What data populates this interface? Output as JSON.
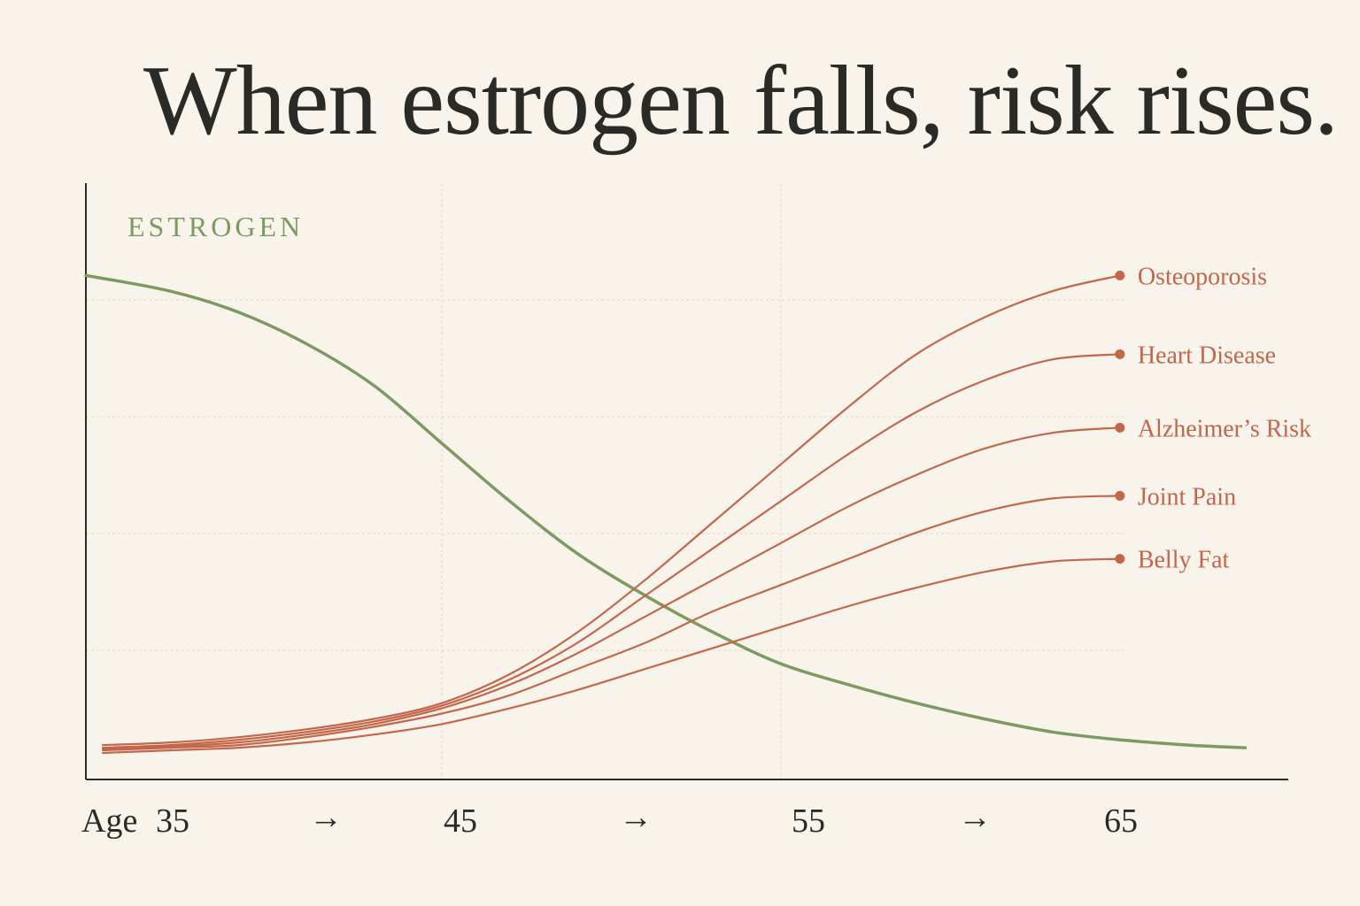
{
  "title": "When estrogen falls, risk rises.",
  "colors": {
    "background": "#f8f4ec",
    "estrogen": "#7d9a60",
    "risk": "#c4664a",
    "axis": "#2a2a26",
    "grid": "#ddd7c9"
  },
  "chart_data": {
    "type": "line",
    "title": "When estrogen falls, risk rises.",
    "xlabel": "Age",
    "ylabel": "",
    "x_ticks": [
      35,
      45,
      55,
      65
    ],
    "tick_separator": "→",
    "xlim": [
      34.5,
      69
    ],
    "ylim": [
      0,
      100
    ],
    "grid": true,
    "estrogen": {
      "name": "ESTROGEN",
      "x": [
        34.5,
        37,
        39,
        41,
        43,
        45,
        47,
        49,
        51,
        53,
        55,
        57,
        59,
        61,
        63,
        65,
        67,
        68.7
      ],
      "values": [
        91,
        88,
        84,
        78,
        70,
        59,
        48,
        38,
        30,
        23,
        17,
        13,
        9.5,
        6.5,
        4,
        2.5,
        1.5,
        1
      ]
    },
    "series": [
      {
        "name": "Osteoporosis",
        "x": [
          35,
          37,
          39,
          41,
          43,
          45,
          47,
          49,
          51,
          53,
          55,
          57,
          59,
          61,
          63,
          65
        ],
        "values": [
          1.5,
          2,
          3,
          4.5,
          6.5,
          9.5,
          15,
          23,
          33,
          44,
          55,
          66,
          76,
          83,
          88,
          91
        ]
      },
      {
        "name": "Heart Disease",
        "x": [
          35,
          37,
          39,
          41,
          43,
          45,
          47,
          49,
          51,
          53,
          55,
          57,
          59,
          61,
          63,
          65
        ],
        "values": [
          1,
          1.5,
          2.5,
          4,
          6,
          9,
          14,
          21,
          30,
          39,
          48,
          57,
          65,
          71,
          75,
          76
        ]
      },
      {
        "name": "Alzheimer’s Risk",
        "x": [
          35,
          37,
          39,
          41,
          43,
          45,
          47,
          49,
          51,
          53,
          55,
          57,
          59,
          61,
          63,
          65
        ],
        "values": [
          0.8,
          1.2,
          2,
          3.5,
          5.5,
          8.5,
          13,
          19,
          26,
          33,
          40,
          47,
          53,
          58,
          61,
          62
        ]
      },
      {
        "name": "Joint Pain",
        "x": [
          35,
          37,
          39,
          41,
          43,
          45,
          47,
          49,
          51,
          53,
          55,
          57,
          59,
          61,
          63,
          65
        ],
        "values": [
          0.5,
          1,
          1.5,
          3,
          5,
          7.5,
          11,
          16,
          21,
          27,
          32,
          37,
          42,
          46,
          48.5,
          49
        ]
      },
      {
        "name": "Belly Fat",
        "x": [
          35,
          37,
          39,
          41,
          43,
          45,
          47,
          49,
          51,
          53,
          55,
          57,
          59,
          61,
          63,
          65
        ],
        "values": [
          0,
          0.5,
          1,
          2,
          3.5,
          5.5,
          8.5,
          12,
          16,
          20,
          24,
          28,
          31.5,
          34.5,
          36.5,
          37
        ]
      }
    ]
  }
}
